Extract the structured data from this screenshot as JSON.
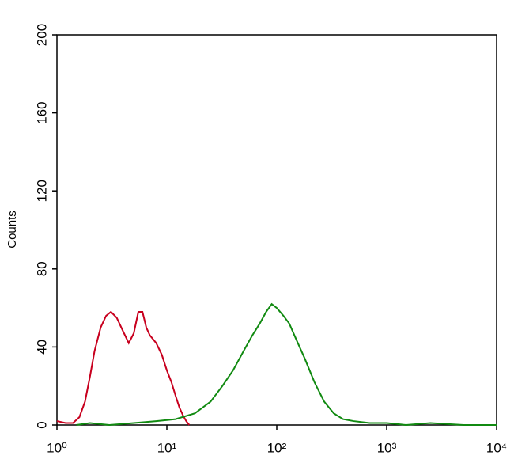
{
  "chart_data": {
    "type": "line",
    "y_label": "Counts",
    "x_log": true,
    "xlim": [
      1,
      10000
    ],
    "xticks": [
      {
        "value": 1,
        "label": "10⁰"
      },
      {
        "value": 10,
        "label": "10¹"
      },
      {
        "value": 100,
        "label": "10²"
      },
      {
        "value": 1000,
        "label": "10³"
      },
      {
        "value": 10000,
        "label": "10⁴"
      }
    ],
    "ylim": [
      0,
      200
    ],
    "yticks": [
      0,
      40,
      80,
      120,
      160,
      200
    ],
    "series": [
      {
        "color": "#c8001e",
        "x": [
          1,
          1.2,
          1.4,
          1.6,
          1.8,
          2,
          2.2,
          2.5,
          2.8,
          3.1,
          3.5,
          4,
          4.5,
          5,
          5.5,
          6,
          6.5,
          7,
          8,
          9,
          10,
          11,
          12,
          13,
          14,
          15,
          16
        ],
        "values": [
          2,
          1,
          1,
          4,
          12,
          25,
          38,
          50,
          56,
          58,
          55,
          48,
          42,
          47,
          58,
          58,
          50,
          46,
          42,
          36,
          28,
          22,
          15,
          9,
          5,
          2,
          0
        ]
      },
      {
        "color": "#118a11",
        "x": [
          1.5,
          2,
          3,
          5,
          8,
          12,
          18,
          25,
          32,
          40,
          50,
          60,
          70,
          80,
          90,
          100,
          115,
          130,
          150,
          180,
          220,
          270,
          330,
          400,
          500,
          700,
          1000,
          1500,
          2500,
          5000,
          10000
        ],
        "values": [
          0,
          1,
          0,
          1,
          2,
          3,
          6,
          12,
          20,
          28,
          38,
          46,
          52,
          58,
          62,
          60,
          56,
          52,
          44,
          34,
          22,
          12,
          6,
          3,
          2,
          1,
          1,
          0,
          1,
          0,
          0
        ]
      }
    ]
  }
}
